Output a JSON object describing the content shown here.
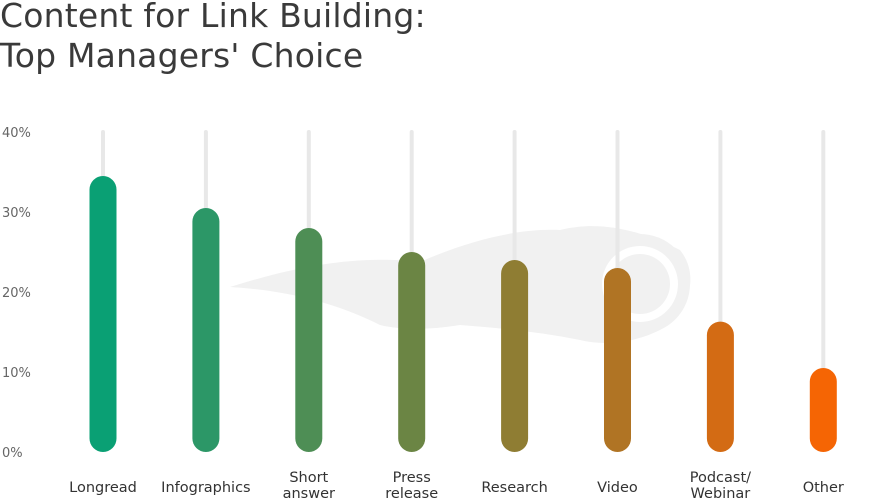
{
  "chart_data": {
    "type": "bar",
    "title": "Content for Link Building:\nTop Managers' Choice",
    "title_lines": [
      "Content for Link Building:",
      "Top Managers' Choice"
    ],
    "categories": [
      "Longread",
      "Infographics",
      "Short answer",
      "Press release",
      "Research",
      "Video",
      "Podcast/ Webinar",
      "Other"
    ],
    "category_lines": [
      [
        "Longread"
      ],
      [
        "Infographics"
      ],
      [
        "Short",
        "answer"
      ],
      [
        "Press",
        "release"
      ],
      [
        "Research"
      ],
      [
        "Video"
      ],
      [
        "Podcast/",
        "Webinar"
      ],
      [
        "Other"
      ]
    ],
    "values": [
      34.5,
      30.5,
      28,
      25,
      24,
      23,
      16.3,
      10.5
    ],
    "colors": [
      "#0aa074",
      "#2c9767",
      "#4e8e55",
      "#6b8544",
      "#8f7d33",
      "#b07424",
      "#d36b14",
      "#f56504"
    ],
    "ylim": [
      0,
      40
    ],
    "yticks": [
      0,
      10,
      20,
      30,
      40
    ],
    "ytick_labels": [
      "0%",
      "10%",
      "20%",
      "30%",
      "40%"
    ],
    "xlabel": "",
    "ylabel": "",
    "grid": false,
    "legend": "none"
  }
}
